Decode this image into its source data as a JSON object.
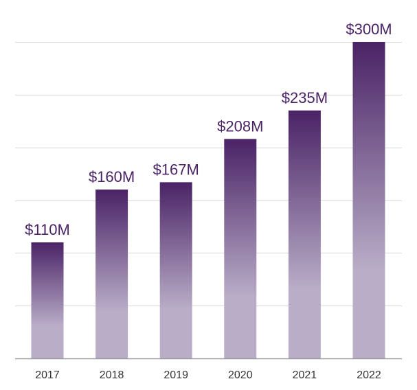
{
  "chart_data": {
    "type": "bar",
    "categories": [
      "2017",
      "2018",
      "2019",
      "2020",
      "2021",
      "2022"
    ],
    "values": [
      110,
      160,
      167,
      208,
      235,
      300
    ],
    "value_labels": [
      "$110M",
      "$160M",
      "$167M",
      "$208M",
      "$235M",
      "$300M"
    ],
    "title": "",
    "xlabel": "",
    "ylabel": "",
    "ylim": [
      0,
      300
    ],
    "grid": true,
    "gridline_values": [
      0,
      50,
      100,
      150,
      200,
      250,
      300
    ]
  },
  "colors": {
    "bar_top": "#4a2366",
    "bar_bottom": "#b9adc7",
    "label_text": "#4a2366",
    "tick_text": "#333333",
    "grid": "#d6d6d6",
    "axis": "#9a9a9a"
  }
}
